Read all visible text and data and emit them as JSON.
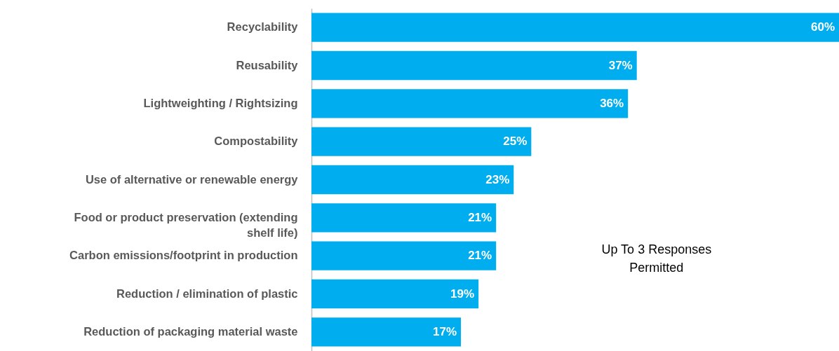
{
  "chart_data": {
    "type": "bar",
    "orientation": "horizontal",
    "categories": [
      "Recyclability",
      "Reusability",
      "Lightweighting / Rightsizing",
      "Compostability",
      "Use of alternative or renewable energy",
      "Food or product preservation (extending shelf life)",
      "Carbon emissions/footprint in production",
      "Reduction / elimination of plastic",
      "Reduction of packaging material waste"
    ],
    "values": [
      60,
      37,
      36,
      25,
      23,
      21,
      21,
      19,
      17
    ],
    "value_labels": [
      "60%",
      "37%",
      "36%",
      "25%",
      "23%",
      "21%",
      "21%",
      "19%",
      "17%"
    ],
    "color": "#00aeef",
    "xlim": [
      0,
      60
    ],
    "annotations": [
      "Up To 3 Responses\nPermitted"
    ]
  }
}
